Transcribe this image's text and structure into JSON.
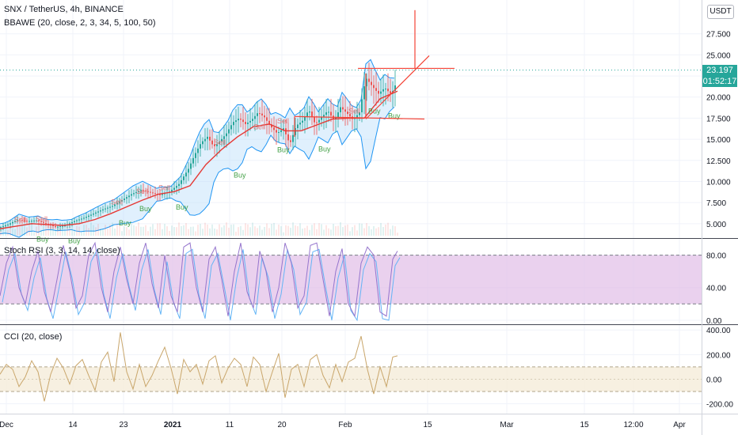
{
  "header": {
    "symbol_line": "SNX / TetherUS, 4h, BINANCE",
    "indicator_line": "BBAWE (20, close, 2, 3, 34, 5, 100, 50)"
  },
  "currency_button": "USDT",
  "last_price_tag": {
    "price": "23.197",
    "countdown": "01:52:17",
    "color": "#26a69a",
    "value": 23.197
  },
  "colors": {
    "grid": "#f0f3fa",
    "divider": "#434651",
    "up": "#26a69a",
    "down": "#ef5350",
    "bollinger": "#2196f3",
    "bollinger_fill": "#bbdefb",
    "ma": "#e53935",
    "drawing": "#f44336",
    "rsi_band_fill": "#e1bee7",
    "rsi_line": "#9575cd",
    "rsi_line2": "#64b5f6",
    "cci_band_fill": "#f5ecd9",
    "cci_line": "#c9a66b",
    "buy_label": "#43a047",
    "sell_label": "#e57373"
  },
  "chart_data": [
    {
      "type": "line",
      "panel": "price",
      "title": "SNX / TetherUS, 4h, BINANCE",
      "ylim": [
        3.3,
        31.5
      ],
      "y_ticks": [
        "5.000",
        "7.500",
        "10.000",
        "12.500",
        "15.000",
        "17.500",
        "20.000",
        "22.500",
        "25.000",
        "27.500"
      ],
      "y_tick_values": [
        5,
        7.5,
        10,
        12.5,
        15,
        17.5,
        20,
        22.5,
        25,
        27.5
      ],
      "x_ticks": [
        "Dec",
        "14",
        "23",
        "2021",
        "11",
        "20",
        "Feb",
        "15",
        "Mar",
        "15",
        "12:00",
        "Apr"
      ],
      "series": [
        {
          "name": "",
          "x": [
            0,
            12,
            24,
            36,
            48,
            60,
            72,
            84,
            96,
            108,
            120,
            132,
            144,
            156,
            168,
            180,
            192,
            204,
            216,
            228,
            240,
            248,
            256,
            264,
            272,
            280,
            288,
            296,
            304,
            312,
            320,
            328,
            336,
            344,
            352,
            360,
            368,
            376,
            384,
            392,
            400,
            408,
            416,
            424,
            432,
            440,
            448,
            456,
            464,
            472,
            480,
            488,
            496,
            502
          ],
          "values": [
            4.5,
            4.9,
            5.5,
            5.3,
            5.4,
            5.0,
            4.6,
            4.8,
            5.3,
            5.7,
            6.2,
            6.7,
            7.1,
            7.8,
            8.5,
            9.0,
            8.7,
            8.4,
            8.8,
            9.7,
            11.5,
            13.2,
            14.6,
            15.3,
            14.1,
            14.8,
            15.7,
            17.0,
            17.5,
            16.8,
            17.3,
            18.2,
            17.6,
            16.5,
            15.7,
            16.3,
            14.4,
            16.6,
            17.2,
            18.5,
            16.8,
            17.6,
            18.4,
            17.2,
            18.8,
            18.1,
            17.3,
            18.2,
            22.3,
            21.3,
            20.4,
            21.1,
            20.3,
            21.6
          ]
        },
        {
          "name": "",
          "x": [
            0,
            20,
            40,
            60,
            80,
            100,
            120,
            140,
            160,
            180,
            200,
            220,
            240,
            260,
            280,
            300,
            320,
            340,
            360,
            380,
            400,
            420,
            440,
            460,
            480,
            502
          ],
          "values": [
            4.4,
            4.7,
            5.0,
            4.9,
            4.8,
            5.0,
            5.5,
            6.2,
            7.0,
            7.8,
            8.5,
            8.8,
            9.5,
            12.0,
            13.8,
            15.3,
            16.5,
            16.8,
            16.0,
            16.0,
            16.7,
            17.4,
            17.5,
            17.5,
            19.8,
            20.7
          ]
        }
      ],
      "annotations": [
        "Sell",
        "Buy"
      ]
    },
    {
      "type": "line",
      "panel": "stoch_rsi",
      "title": "Stoch RSI (3, 3, 14, 14, close)",
      "ylim": [
        -5,
        100
      ],
      "y_ticks": [
        "80.00",
        "40.00",
        "0.00"
      ],
      "y_tick_values": [
        80,
        40,
        0
      ],
      "band": [
        20,
        80
      ],
      "series": [
        {
          "name": "",
          "x": [
            0,
            8,
            16,
            24,
            32,
            40,
            48,
            56,
            64,
            72,
            80,
            88,
            96,
            104,
            112,
            120,
            128,
            136,
            144,
            152,
            160,
            168,
            176,
            184,
            192,
            200,
            208,
            216,
            224,
            232,
            240,
            248,
            256,
            264,
            272,
            280,
            288,
            296,
            304,
            312,
            320,
            328,
            336,
            344,
            352,
            360,
            368,
            376,
            384,
            392,
            400,
            408,
            416,
            424,
            432,
            440,
            448,
            456,
            464,
            472,
            480,
            488,
            496,
            502
          ],
          "values": [
            30,
            70,
            90,
            40,
            20,
            60,
            85,
            35,
            10,
            50,
            92,
            60,
            15,
            30,
            80,
            95,
            40,
            10,
            60,
            90,
            50,
            20,
            70,
            95,
            45,
            15,
            80,
            30,
            10,
            90,
            95,
            40,
            10,
            75,
            90,
            50,
            5,
            60,
            95,
            35,
            15,
            85,
            60,
            10,
            40,
            95,
            70,
            15,
            30,
            92,
            95,
            50,
            5,
            60,
            88,
            20,
            5,
            70,
            90,
            80,
            10,
            5,
            75,
            85
          ]
        }
      ]
    },
    {
      "type": "line",
      "panel": "cci",
      "title": "CCI (20, close)",
      "ylim": [
        -280,
        440
      ],
      "y_ticks": [
        "400.00",
        "200.00",
        "0.00",
        "-200.00"
      ],
      "y_tick_values": [
        400,
        200,
        0,
        -200
      ],
      "band": [
        -100,
        100
      ],
      "series": [
        {
          "name": "",
          "x": [
            0,
            8,
            16,
            24,
            32,
            40,
            48,
            56,
            64,
            72,
            80,
            88,
            96,
            104,
            112,
            120,
            128,
            136,
            144,
            152,
            160,
            168,
            176,
            184,
            192,
            200,
            208,
            216,
            224,
            232,
            240,
            248,
            256,
            264,
            272,
            280,
            288,
            296,
            304,
            312,
            320,
            328,
            336,
            344,
            352,
            360,
            368,
            376,
            384,
            392,
            400,
            408,
            416,
            424,
            432,
            440,
            448,
            456,
            464,
            472,
            480,
            488,
            496,
            502
          ],
          "values": [
            40,
            120,
            80,
            -60,
            20,
            150,
            60,
            -180,
            40,
            170,
            90,
            -40,
            110,
            160,
            30,
            -90,
            140,
            220,
            -20,
            380,
            60,
            -80,
            120,
            -60,
            30,
            150,
            260,
            90,
            -120,
            160,
            60,
            120,
            -40,
            150,
            190,
            -30,
            90,
            170,
            120,
            -60,
            180,
            120,
            -100,
            60,
            210,
            -150,
            80,
            120,
            -60,
            160,
            200,
            30,
            -70,
            120,
            -20,
            140,
            170,
            350,
            80,
            -120,
            100,
            -60,
            180,
            190
          ]
        }
      ]
    }
  ]
}
